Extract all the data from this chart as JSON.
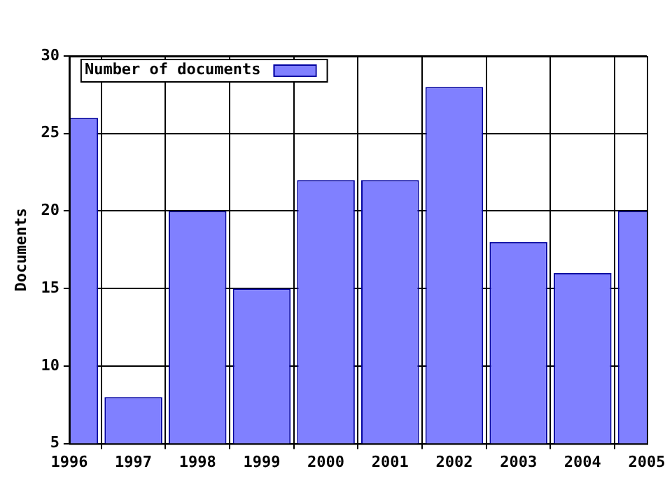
{
  "chart_data": {
    "type": "bar",
    "ylabel": "Documents",
    "x": [
      1996,
      1997,
      1998,
      1999,
      2000,
      2001,
      2002,
      2003,
      2004,
      2005
    ],
    "series": [
      {
        "name": "Number of documents",
        "color": "#8080ff",
        "values": [
          26,
          8,
          20,
          15,
          22,
          22,
          28,
          18,
          16,
          20
        ]
      }
    ],
    "xlim": [
      1996,
      2005
    ],
    "xticks": [
      1996,
      1997,
      1998,
      1999,
      2000,
      2001,
      2002,
      2003,
      2004,
      2005
    ],
    "ylim": [
      5,
      30
    ],
    "yticks": [
      5,
      10,
      15,
      20,
      25,
      30
    ],
    "grid": true,
    "legend": "top left"
  }
}
